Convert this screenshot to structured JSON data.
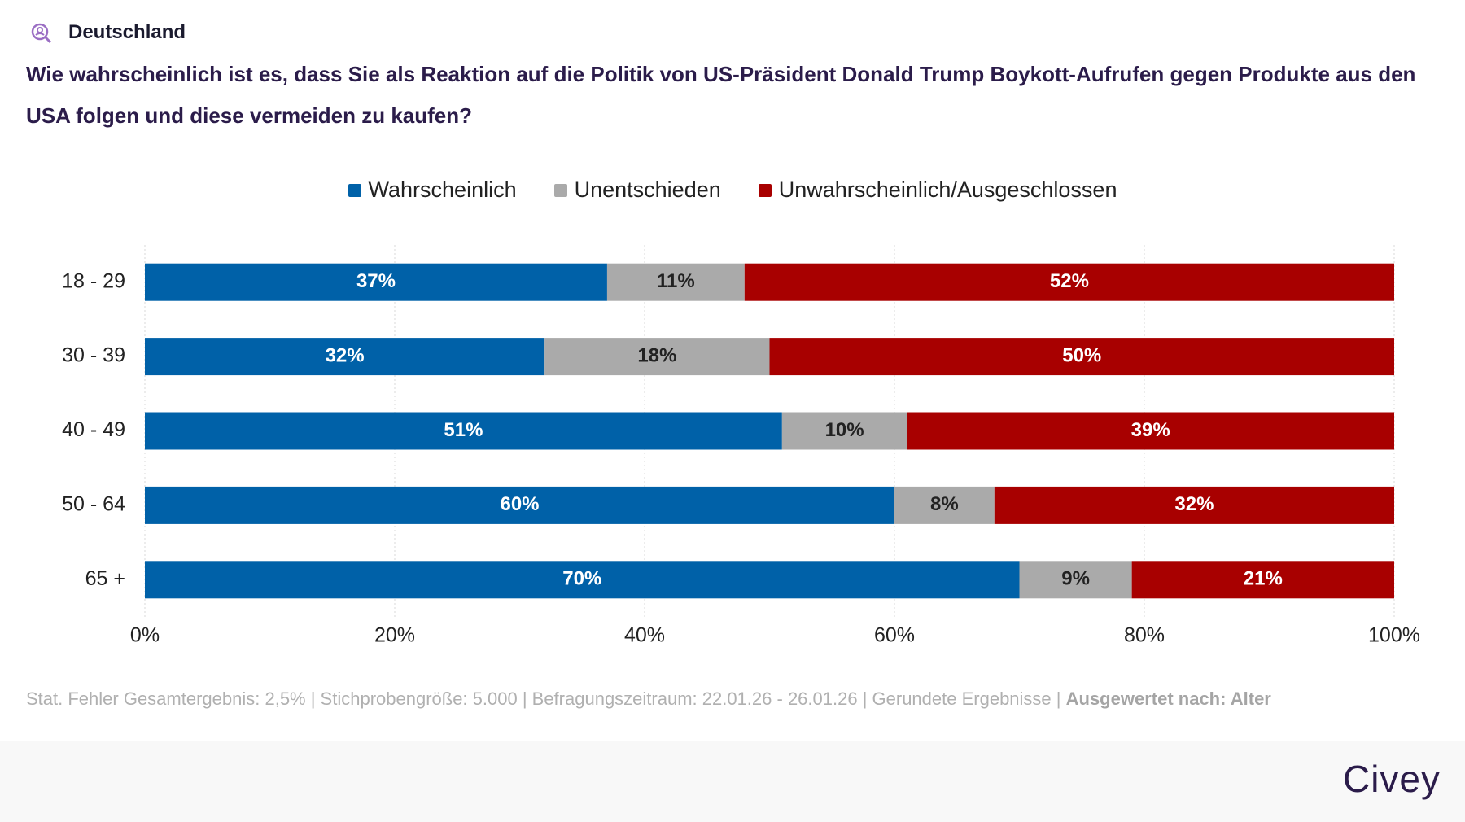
{
  "header": {
    "region": "Deutschland"
  },
  "chart_data": {
    "type": "stacked-bar-horizontal",
    "title": "Wie wahrscheinlich ist es, dass Sie als Reaktion auf die Politik von US-Präsident Donald Trump Boykott-Aufrufen gegen Produkte aus den USA folgen und diese vermeiden zu kaufen?",
    "categories": [
      "18 - 29",
      "30 - 39",
      "40 - 49",
      "50 - 64",
      "65 +"
    ],
    "series": [
      {
        "name": "Wahrscheinlich",
        "color": "#0061a8",
        "values": [
          37,
          32,
          51,
          60,
          70
        ],
        "value_labels": [
          "37%",
          "32%",
          "51%",
          "60%",
          "70%"
        ]
      },
      {
        "name": "Unentschieden",
        "color": "#aaaaaa",
        "values": [
          11,
          18,
          10,
          8,
          9
        ],
        "value_labels": [
          "11%",
          "18%",
          "10%",
          "8%",
          "9%"
        ]
      },
      {
        "name": "Unwahrscheinlich/Ausgeschlossen",
        "color": "#a80000",
        "values": [
          52,
          50,
          39,
          32,
          21
        ],
        "value_labels": [
          "52%",
          "50%",
          "39%",
          "32%",
          "21%"
        ]
      }
    ],
    "xlim": [
      0,
      100
    ],
    "xticks": [
      {
        "value": 0,
        "label": "0%"
      },
      {
        "value": 20,
        "label": "20%"
      },
      {
        "value": 40,
        "label": "40%"
      },
      {
        "value": 60,
        "label": "60%"
      },
      {
        "value": 80,
        "label": "80%"
      },
      {
        "value": 100,
        "label": "100%"
      }
    ],
    "grid": true
  },
  "footer": {
    "note": "Stat. Fehler Gesamtergebnis: 2,5% | Stichprobengröße: 5.000 | Befragungszeitraum: 22.01.26 - 26.01.26 | Gerundete Ergebnisse |",
    "grouping": "Ausgewertet nach: Alter"
  },
  "brand": "Civey"
}
